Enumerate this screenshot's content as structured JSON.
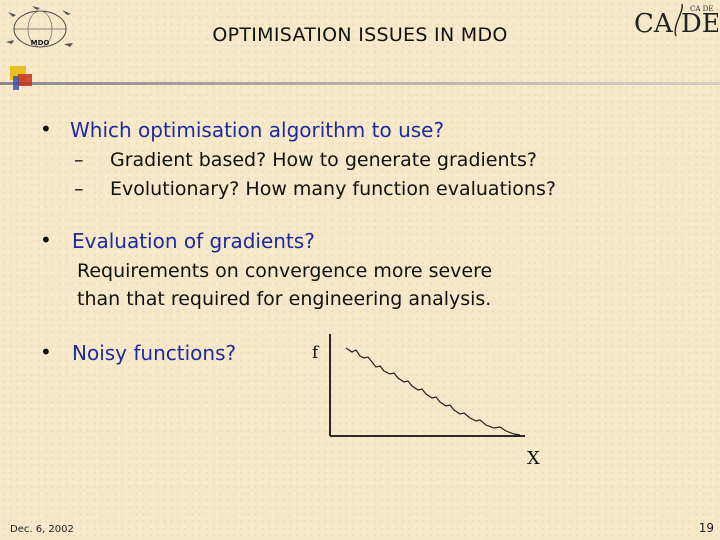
{
  "header": {
    "title": "OPTIMISATION ISSUES IN MDO",
    "logo_left_text": "MDO",
    "logo_right_text": "CA DE",
    "logo_right_small_text": "CA DE"
  },
  "content": {
    "bullet1": {
      "text": "Which optimisation algorithm to use?",
      "sub_items": [
        "Gradient based?  How to generate gradients?",
        "Evolutionary? How many function evaluations?"
      ]
    },
    "bullet2": {
      "text": "Evaluation of gradients?",
      "detail_lines": [
        "Requirements on convergence more severe",
        "than that required for engineering analysis."
      ]
    },
    "bullet3": {
      "text": "Noisy functions?"
    }
  },
  "plot": {
    "y_label": "f",
    "x_label": "X"
  },
  "footer": {
    "date": "Dec. 6, 2002",
    "page_number": "19"
  },
  "colors": {
    "accent_blue": "#1c2aa0",
    "background": "#f6e8c8",
    "rule_gray": "#9a9a9a",
    "square_yellow": "#e8c020",
    "square_red": "#c83020",
    "square_blue": "#3a4aa8"
  }
}
